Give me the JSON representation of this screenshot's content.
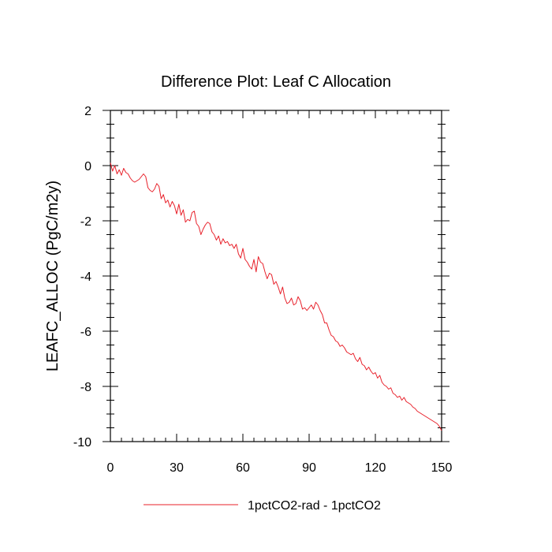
{
  "chart_data": {
    "type": "line",
    "title": "Difference Plot: Leaf C Allocation",
    "xlabel": "",
    "ylabel": "LEAFC_ALLOC  (PgC/m2y)",
    "xlim": [
      0,
      150
    ],
    "ylim": [
      -10,
      2
    ],
    "xticks": [
      0,
      30,
      60,
      90,
      120,
      150
    ],
    "yticks": [
      2,
      0,
      -2,
      -4,
      -6,
      -8,
      -10
    ],
    "xtick_labels": [
      "0",
      "30",
      "60",
      "90",
      "120",
      "150"
    ],
    "ytick_labels": [
      "2",
      "0",
      "-2",
      "-4",
      "-6",
      "-8",
      "-10"
    ],
    "grid": false,
    "legend_position": "bottom",
    "series": [
      {
        "name": "1pctCO2-rad - 1pctCO2",
        "color": "#e8202a",
        "x": [
          0,
          1,
          2,
          3,
          4,
          5,
          6,
          7,
          8,
          9,
          10,
          11,
          12,
          13,
          14,
          15,
          16,
          17,
          18,
          19,
          20,
          21,
          22,
          23,
          24,
          25,
          26,
          27,
          28,
          29,
          30,
          31,
          32,
          33,
          34,
          35,
          36,
          37,
          38,
          39,
          40,
          41,
          42,
          43,
          44,
          45,
          46,
          47,
          48,
          49,
          50,
          51,
          52,
          53,
          54,
          55,
          56,
          57,
          58,
          59,
          60,
          61,
          62,
          63,
          64,
          65,
          66,
          67,
          68,
          69,
          70,
          71,
          72,
          73,
          74,
          75,
          76,
          77,
          78,
          79,
          80,
          81,
          82,
          83,
          84,
          85,
          86,
          87,
          88,
          89,
          90,
          91,
          92,
          93,
          94,
          95,
          96,
          97,
          98,
          99,
          100,
          101,
          102,
          103,
          104,
          105,
          106,
          107,
          108,
          109,
          110,
          111,
          112,
          113,
          114,
          115,
          116,
          117,
          118,
          119,
          120,
          121,
          122,
          123,
          124,
          125,
          126,
          127,
          128,
          129,
          130,
          131,
          132,
          133,
          134,
          135,
          136,
          137,
          138,
          139,
          140,
          141,
          142,
          143,
          144,
          145,
          146,
          147,
          148,
          149,
          150
        ],
        "y": [
          0.1,
          -0.2,
          0.0,
          -0.3,
          -0.15,
          -0.35,
          -0.1,
          -0.25,
          -0.3,
          -0.45,
          -0.55,
          -0.6,
          -0.55,
          -0.5,
          -0.4,
          -0.3,
          -0.4,
          -0.8,
          -0.9,
          -0.95,
          -0.85,
          -0.65,
          -0.75,
          -1.2,
          -1.05,
          -1.35,
          -1.25,
          -1.5,
          -1.3,
          -1.45,
          -1.75,
          -1.4,
          -1.8,
          -1.6,
          -2.05,
          -1.95,
          -2.0,
          -1.7,
          -1.65,
          -2.1,
          -2.2,
          -2.5,
          -2.3,
          -2.15,
          -2.05,
          -2.1,
          -2.4,
          -2.5,
          -2.7,
          -2.55,
          -2.85,
          -2.65,
          -2.8,
          -2.75,
          -2.9,
          -2.85,
          -3.0,
          -2.85,
          -3.2,
          -3.35,
          -3.0,
          -3.4,
          -3.5,
          -3.65,
          -3.75,
          -3.4,
          -3.85,
          -3.3,
          -3.5,
          -3.55,
          -3.85,
          -4.1,
          -3.9,
          -3.95,
          -4.3,
          -4.2,
          -4.4,
          -4.65,
          -4.4,
          -4.8,
          -5.0,
          -4.95,
          -4.8,
          -5.05,
          -5.0,
          -4.75,
          -4.9,
          -5.2,
          -5.15,
          -5.25,
          -5.15,
          -5.05,
          -5.2,
          -4.95,
          -5.05,
          -5.25,
          -5.4,
          -5.7,
          -5.7,
          -5.95,
          -6.15,
          -6.2,
          -6.35,
          -6.4,
          -6.55,
          -6.5,
          -6.6,
          -6.75,
          -6.8,
          -6.85,
          -6.8,
          -7.0,
          -7.1,
          -6.95,
          -7.2,
          -7.25,
          -7.4,
          -7.3,
          -7.45,
          -7.55,
          -7.5,
          -7.7,
          -7.6,
          -7.85,
          -7.95,
          -8.0,
          -8.1,
          -8.05,
          -8.25,
          -8.3,
          -8.4,
          -8.35,
          -8.5,
          -8.4,
          -8.55,
          -8.6,
          -8.65,
          -8.75,
          -8.8,
          -8.9,
          -8.95,
          -9.0,
          -9.05,
          -9.1,
          -9.15,
          -9.2,
          -9.25,
          -9.3,
          -9.35,
          -9.45,
          -9.6
        ]
      }
    ]
  }
}
